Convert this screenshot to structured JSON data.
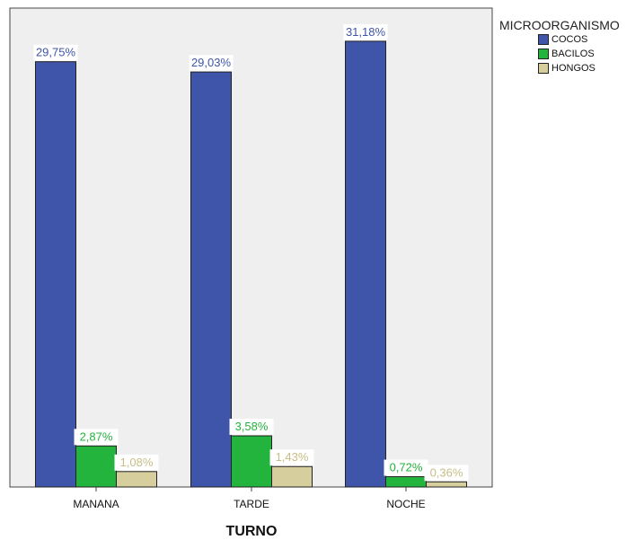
{
  "chart_data": {
    "type": "bar",
    "categories": [
      "MANANA",
      "TARDE",
      "NOCHE"
    ],
    "series": [
      {
        "name": "COCOS",
        "color": "#3F55A9",
        "label_color": "#3F55A9",
        "values": [
          29.75,
          29.03,
          31.18
        ],
        "labels": [
          "29,75%",
          "29,03%",
          "31,18%"
        ]
      },
      {
        "name": "BACILOS",
        "color": "#23B43E",
        "label_color": "#23B43E",
        "values": [
          2.87,
          3.58,
          0.72
        ],
        "labels": [
          "2,87%",
          "3,58%",
          "0,72%"
        ]
      },
      {
        "name": "HONGOS",
        "color": "#D6CE9C",
        "label_color": "#C7BD85",
        "values": [
          1.08,
          1.43,
          0.36
        ],
        "labels": [
          "1,08%",
          "1,43%",
          "0,36%"
        ]
      }
    ],
    "xlabel": "TURNO",
    "ylabel": "",
    "ylim": [
      0,
      33.5
    ],
    "legend_title": "MICROORGANISMO",
    "legend_position": "top-right",
    "plot_background": "#EFEFEF",
    "grid": false
  }
}
